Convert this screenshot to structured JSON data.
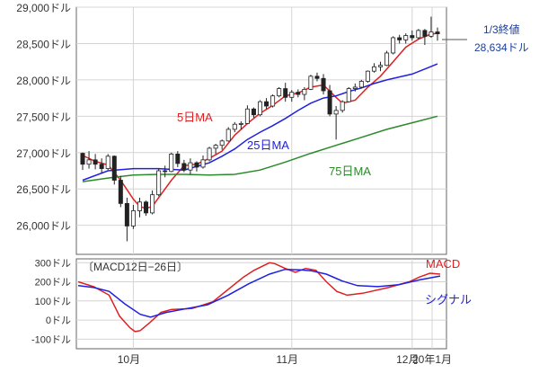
{
  "chart_data": [
    {
      "type": "candlestick",
      "ylim": [
        25600,
        29000
      ],
      "y_ticks": [
        26000,
        26500,
        27000,
        27500,
        28000,
        28500,
        29000
      ],
      "y_tick_labels": [
        "26,000ドル",
        "26,500ドル",
        "27,000ドル",
        "27,500ドル",
        "28,000ドル",
        "28,500ドル",
        "29,000ドル"
      ],
      "x_tick_labels": [
        "10月",
        "11月",
        "12月",
        "20年1月"
      ],
      "annotation": {
        "line1": "1/3終値",
        "line2": "28,634ドル",
        "value": 28634
      },
      "candles": [
        [
          26990,
          27000,
          26760,
          26840
        ],
        [
          26840,
          27020,
          26780,
          26900
        ],
        [
          26900,
          26980,
          26770,
          26840
        ],
        [
          26840,
          26920,
          26720,
          26780
        ],
        [
          26780,
          26980,
          26760,
          26950
        ],
        [
          26950,
          26960,
          26560,
          26620
        ],
        [
          26620,
          26680,
          26250,
          26300
        ],
        [
          26300,
          26380,
          25780,
          25990
        ],
        [
          25990,
          26280,
          25950,
          26200
        ],
        [
          26200,
          26380,
          26110,
          26320
        ],
        [
          26320,
          26340,
          26130,
          26170
        ],
        [
          26170,
          26480,
          26150,
          26420
        ],
        [
          26420,
          26780,
          26400,
          26750
        ],
        [
          26750,
          26820,
          26660,
          26740
        ],
        [
          26740,
          27000,
          26730,
          26980
        ],
        [
          26980,
          27020,
          26800,
          26850
        ],
        [
          26850,
          26900,
          26730,
          26760
        ],
        [
          26760,
          26920,
          26700,
          26860
        ],
        [
          26860,
          26880,
          26740,
          26800
        ],
        [
          26800,
          26960,
          26780,
          26900
        ],
        [
          26900,
          27080,
          26880,
          27060
        ],
        [
          27060,
          27120,
          26980,
          27100
        ],
        [
          27100,
          27180,
          27040,
          27160
        ],
        [
          27160,
          27350,
          27150,
          27320
        ],
        [
          27320,
          27420,
          27280,
          27390
        ],
        [
          27390,
          27430,
          27320,
          27400
        ],
        [
          27400,
          27650,
          27390,
          27600
        ],
        [
          27600,
          27620,
          27480,
          27520
        ],
        [
          27520,
          27720,
          27500,
          27700
        ],
        [
          27700,
          27750,
          27600,
          27640
        ],
        [
          27640,
          27800,
          27620,
          27780
        ],
        [
          27780,
          27900,
          27760,
          27880
        ],
        [
          27880,
          27960,
          27700,
          27760
        ],
        [
          27760,
          27860,
          27700,
          27830
        ],
        [
          27830,
          27870,
          27760,
          27800
        ],
        [
          27800,
          27900,
          27720,
          27870
        ],
        [
          27870,
          28070,
          27860,
          28050
        ],
        [
          28050,
          28100,
          27980,
          28020
        ],
        [
          28020,
          28080,
          27800,
          27850
        ],
        [
          27850,
          27930,
          27500,
          27530
        ],
        [
          27530,
          27640,
          27180,
          27580
        ],
        [
          27580,
          27720,
          27550,
          27700
        ],
        [
          27700,
          27900,
          27690,
          27880
        ],
        [
          27880,
          27950,
          27840,
          27900
        ],
        [
          27900,
          28000,
          27880,
          27980
        ],
        [
          27980,
          28130,
          27960,
          28120
        ],
        [
          28120,
          28230,
          28100,
          28180
        ],
        [
          28180,
          28250,
          28120,
          28200
        ],
        [
          28200,
          28400,
          28190,
          28370
        ],
        [
          28370,
          28600,
          28350,
          28580
        ],
        [
          28580,
          28620,
          28500,
          28550
        ],
        [
          28550,
          28640,
          28500,
          28610
        ],
        [
          28610,
          28680,
          28540,
          28580
        ],
        [
          28580,
          28700,
          28560,
          28680
        ],
        [
          28680,
          28700,
          28480,
          28600
        ],
        [
          28600,
          28870,
          28580,
          28660
        ],
        [
          28660,
          28720,
          28540,
          28634
        ]
      ],
      "series": [
        {
          "name": "5日MA",
          "color": "#e02020",
          "points": [
            [
              0,
              26960
            ],
            [
              2,
              26880
            ],
            [
              4,
              26830
            ],
            [
              6,
              26620
            ],
            [
              8,
              26360
            ],
            [
              9,
              26260
            ],
            [
              10,
              26230
            ],
            [
              11,
              26260
            ],
            [
              12,
              26380
            ],
            [
              14,
              26620
            ],
            [
              16,
              26820
            ],
            [
              18,
              26840
            ],
            [
              20,
              26920
            ],
            [
              22,
              27020
            ],
            [
              24,
              27240
            ],
            [
              26,
              27400
            ],
            [
              28,
              27540
            ],
            [
              30,
              27650
            ],
            [
              32,
              27780
            ],
            [
              34,
              27820
            ],
            [
              36,
              27900
            ],
            [
              38,
              27930
            ],
            [
              40,
              27760
            ],
            [
              41,
              27680
            ],
            [
              43,
              27720
            ],
            [
              45,
              27900
            ],
            [
              47,
              28050
            ],
            [
              49,
              28250
            ],
            [
              51,
              28450
            ],
            [
              53,
              28560
            ],
            [
              55,
              28630
            ],
            [
              56,
              28640
            ]
          ]
        },
        {
          "name": "25日MA",
          "color": "#2020e0",
          "points": [
            [
              0,
              26620
            ],
            [
              4,
              26750
            ],
            [
              8,
              26780
            ],
            [
              12,
              26780
            ],
            [
              16,
              26760
            ],
            [
              20,
              26860
            ],
            [
              22,
              26950
            ],
            [
              24,
              27050
            ],
            [
              26,
              27180
            ],
            [
              28,
              27280
            ],
            [
              30,
              27370
            ],
            [
              32,
              27470
            ],
            [
              34,
              27580
            ],
            [
              36,
              27680
            ],
            [
              38,
              27750
            ],
            [
              40,
              27780
            ],
            [
              42,
              27840
            ],
            [
              44,
              27890
            ],
            [
              46,
              27950
            ],
            [
              48,
              28000
            ],
            [
              50,
              28040
            ],
            [
              52,
              28080
            ],
            [
              54,
              28150
            ],
            [
              56,
              28220
            ]
          ]
        },
        {
          "name": "75日MA",
          "color": "#2a8a2a",
          "points": [
            [
              0,
              26600
            ],
            [
              4,
              26650
            ],
            [
              8,
              26690
            ],
            [
              12,
              26700
            ],
            [
              16,
              26700
            ],
            [
              20,
              26690
            ],
            [
              24,
              26700
            ],
            [
              28,
              26760
            ],
            [
              32,
              26870
            ],
            [
              36,
              26990
            ],
            [
              40,
              27100
            ],
            [
              44,
              27210
            ],
            [
              48,
              27320
            ],
            [
              52,
              27410
            ],
            [
              56,
              27500
            ]
          ]
        }
      ]
    },
    {
      "type": "line",
      "title": "〔MACD12日−26日〕",
      "ylim": [
        -150,
        320
      ],
      "y_ticks": [
        -100,
        0,
        100,
        200,
        300
      ],
      "y_tick_labels": [
        "-100ドル",
        "0ドル",
        "100ドル",
        "200ドル",
        "300ドル"
      ],
      "series": [
        {
          "name": "MACD",
          "color": "#e02020",
          "points": [
            [
              0,
              200
            ],
            [
              3,
              175
            ],
            [
              6,
              130
            ],
            [
              8,
              20
            ],
            [
              10,
              -40
            ],
            [
              11,
              -60
            ],
            [
              12,
              -55
            ],
            [
              14,
              -10
            ],
            [
              16,
              40
            ],
            [
              18,
              55
            ],
            [
              22,
              60
            ],
            [
              26,
              95
            ],
            [
              29,
              160
            ],
            [
              32,
              225
            ],
            [
              34,
              260
            ],
            [
              37,
              300
            ],
            [
              38,
              295
            ],
            [
              40,
              270
            ],
            [
              42,
              250
            ],
            [
              44,
              270
            ],
            [
              46,
              260
            ],
            [
              48,
              200
            ],
            [
              50,
              150
            ],
            [
              52,
              130
            ],
            [
              55,
              140
            ],
            [
              60,
              170
            ],
            [
              64,
              200
            ],
            [
              66,
              225
            ],
            [
              68,
              245
            ],
            [
              70,
              240
            ]
          ]
        },
        {
          "name": "シグナル",
          "color": "#2020e0",
          "points": [
            [
              0,
              180
            ],
            [
              3,
              170
            ],
            [
              6,
              150
            ],
            [
              9,
              85
            ],
            [
              12,
              30
            ],
            [
              14,
              15
            ],
            [
              17,
              40
            ],
            [
              21,
              60
            ],
            [
              25,
              80
            ],
            [
              29,
              130
            ],
            [
              33,
              190
            ],
            [
              37,
              240
            ],
            [
              40,
              265
            ],
            [
              43,
              262
            ],
            [
              45,
              258
            ],
            [
              48,
              240
            ],
            [
              51,
              205
            ],
            [
              54,
              180
            ],
            [
              58,
              175
            ],
            [
              62,
              185
            ],
            [
              66,
              210
            ],
            [
              70,
              230
            ]
          ]
        }
      ]
    }
  ]
}
